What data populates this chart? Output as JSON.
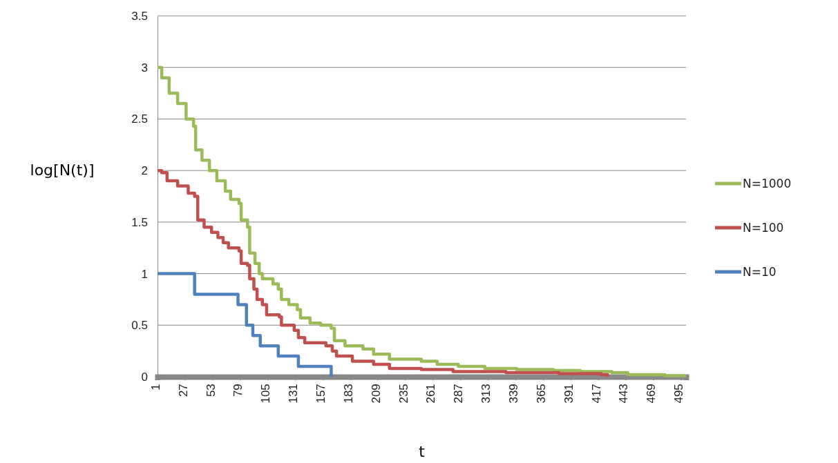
{
  "chart_data": {
    "type": "step",
    "xlabel": "t",
    "ylabel": "log[N(t)]",
    "xlim": [
      1,
      500
    ],
    "xticks": [
      1,
      27,
      53,
      79,
      105,
      131,
      157,
      183,
      209,
      235,
      261,
      287,
      313,
      339,
      365,
      391,
      417,
      443,
      469,
      495
    ],
    "ylim": [
      0,
      3.5
    ],
    "yticks": [
      0,
      0.5,
      1,
      1.5,
      2,
      2.5,
      3,
      3.5
    ],
    "grid": "y",
    "legend": "right",
    "line_style": "solid",
    "marker": "none",
    "series": [
      {
        "name": "N=1000",
        "color": "#9bbb59",
        "x": [
          1,
          5,
          12,
          20,
          28,
          35,
          37,
          43,
          50,
          57,
          65,
          70,
          78,
          80,
          86,
          88,
          93,
          97,
          100,
          110,
          115,
          118,
          125,
          133,
          136,
          145,
          155,
          165,
          168,
          178,
          195,
          205,
          220,
          250,
          265,
          285,
          310,
          340,
          375,
          400,
          430,
          445,
          480,
          500
        ],
        "values": [
          3.0,
          2.9,
          2.75,
          2.65,
          2.5,
          2.43,
          2.2,
          2.1,
          2.0,
          1.9,
          1.8,
          1.72,
          1.68,
          1.52,
          1.45,
          1.2,
          1.1,
          1.0,
          0.95,
          0.9,
          0.85,
          0.75,
          0.7,
          0.65,
          0.57,
          0.52,
          0.5,
          0.47,
          0.35,
          0.3,
          0.27,
          0.22,
          0.17,
          0.15,
          0.12,
          0.1,
          0.08,
          0.07,
          0.06,
          0.05,
          0.04,
          0.02,
          0.01,
          0.01
        ]
      },
      {
        "name": "N=100",
        "color": "#c0504d",
        "x": [
          1,
          5,
          10,
          20,
          30,
          36,
          39,
          45,
          52,
          58,
          63,
          68,
          78,
          80,
          86,
          88,
          92,
          95,
          100,
          104,
          116,
          118,
          130,
          134,
          140,
          160,
          166,
          170,
          185,
          205,
          220,
          250,
          280,
          330,
          380,
          420,
          426
        ],
        "values": [
          2.0,
          1.98,
          1.9,
          1.85,
          1.78,
          1.75,
          1.52,
          1.45,
          1.4,
          1.35,
          1.3,
          1.25,
          1.22,
          1.1,
          1.08,
          0.95,
          0.85,
          0.75,
          0.7,
          0.6,
          0.58,
          0.5,
          0.45,
          0.38,
          0.33,
          0.3,
          0.25,
          0.2,
          0.15,
          0.12,
          0.08,
          0.07,
          0.05,
          0.04,
          0.03,
          0.02,
          0.0
        ]
      },
      {
        "name": "N=10",
        "color": "#4f81bd",
        "x": [
          1,
          36,
          77,
          85,
          91,
          98,
          115,
          134,
          165
        ],
        "values": [
          1.0,
          0.8,
          0.7,
          0.5,
          0.4,
          0.3,
          0.2,
          0.1,
          0.0
        ]
      }
    ]
  }
}
